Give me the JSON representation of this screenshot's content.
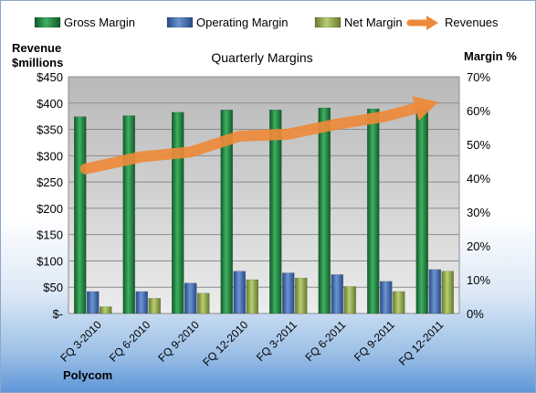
{
  "chart_data": {
    "type": "bar",
    "title": "Quarterly Margins",
    "categories": [
      "FQ 3-2010",
      "FQ 6-2010",
      "FQ 9-2010",
      "FQ 12-2010",
      "FQ 3-2011",
      "FQ 6-2011",
      "FQ 9-2011",
      "FQ 12-2011"
    ],
    "series": [
      {
        "name": "Gross Margin",
        "type": "bar",
        "axis": "right",
        "values": [
          58.2,
          58.5,
          59.5,
          60.2,
          60.2,
          60.8,
          60.5,
          60.5
        ],
        "color": "#1f7a3c"
      },
      {
        "name": "Operating Margin",
        "type": "bar",
        "axis": "right",
        "values": [
          6.5,
          6.5,
          9.0,
          12.5,
          12.0,
          11.5,
          9.5,
          13.0
        ],
        "color": "#3a64a8"
      },
      {
        "name": "Net Margin",
        "type": "bar",
        "axis": "right",
        "values": [
          2.0,
          4.5,
          6.0,
          10.0,
          10.5,
          8.0,
          6.5,
          12.5
        ],
        "color": "#8ea84a"
      },
      {
        "name": "Revenues",
        "type": "line",
        "axis": "left",
        "values": [
          275,
          298,
          307,
          337,
          341,
          360,
          375,
          400
        ],
        "color": "#ed8a3a"
      }
    ],
    "ylabel_left": "Revenue $millions",
    "ylabel_left_lines": [
      "Revenue",
      "$millions"
    ],
    "ylabel_right": "Margin %",
    "ylim_left": [
      0,
      450
    ],
    "yticks_left": [
      "$-",
      "$50",
      "$100",
      "$150",
      "$200",
      "$250",
      "$300",
      "$350",
      "$400",
      "$450"
    ],
    "ylim_right": [
      0,
      70
    ],
    "yticks_right": [
      "0%",
      "10%",
      "20%",
      "30%",
      "40%",
      "50%",
      "60%",
      "70%"
    ],
    "grid": true,
    "legend_placement": "top",
    "source_label": "Polycom"
  }
}
